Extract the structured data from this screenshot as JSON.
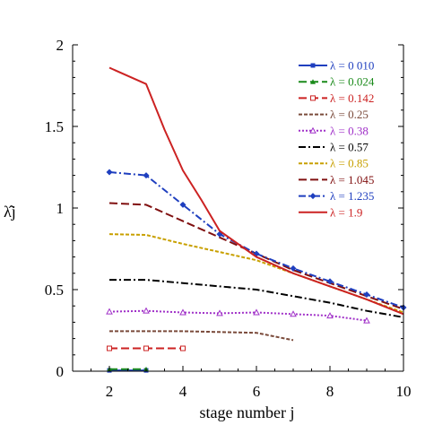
{
  "chart_data": {
    "type": "line",
    "title": "",
    "xlabel": "stage number j",
    "ylabel": "λ̂j",
    "xlim": [
      1,
      10
    ],
    "ylim": [
      0,
      2
    ],
    "xticks": [
      2,
      4,
      6,
      8,
      10
    ],
    "xtick_labels": [
      "2",
      "4",
      "6",
      "8",
      "10"
    ],
    "yticks": [
      0,
      0.5,
      1,
      1.5,
      2
    ],
    "ytick_labels": [
      "0",
      "0.5",
      "1",
      "1.5",
      "2"
    ],
    "grid": false,
    "legend_position": "top-right",
    "series": [
      {
        "name": "λ = 0 010",
        "color": "#1f3fbf",
        "dash": "solid",
        "marker": "square-filled",
        "x": [
          2,
          3
        ],
        "y": [
          0.005,
          0.005
        ]
      },
      {
        "name": "λ = 0.024",
        "color": "#1a8a1a",
        "dash": "long",
        "marker": "triangle",
        "x": [
          2,
          3
        ],
        "y": [
          0.012,
          0.012
        ]
      },
      {
        "name": "λ = 0.142",
        "color": "#cc2222",
        "dash": "long",
        "marker": "square-open",
        "x": [
          2,
          3,
          4
        ],
        "y": [
          0.14,
          0.14,
          0.14
        ]
      },
      {
        "name": "λ = 0.25",
        "color": "#7a4a3a",
        "dash": "short",
        "marker": "none",
        "x": [
          2,
          3,
          4,
          5,
          6,
          7
        ],
        "y": [
          0.245,
          0.245,
          0.245,
          0.24,
          0.235,
          0.19
        ]
      },
      {
        "name": "λ = 0.38",
        "color": "#a030c8",
        "dash": "dotted",
        "marker": "triangle-open",
        "x": [
          2,
          3,
          4,
          5,
          6,
          7,
          8,
          9
        ],
        "y": [
          0.365,
          0.37,
          0.36,
          0.355,
          0.36,
          0.35,
          0.34,
          0.31
        ]
      },
      {
        "name": "λ = 0.57",
        "color": "#000000",
        "dash": "dashdot",
        "marker": "none",
        "x": [
          2,
          3,
          4,
          5,
          6,
          7,
          8,
          9,
          10
        ],
        "y": [
          0.56,
          0.56,
          0.54,
          0.52,
          0.5,
          0.46,
          0.42,
          0.37,
          0.33
        ]
      },
      {
        "name": "λ = 0.85",
        "color": "#c8a000",
        "dash": "short",
        "marker": "none",
        "x": [
          2,
          3,
          4,
          5,
          6,
          7,
          8,
          9,
          10
        ],
        "y": [
          0.84,
          0.835,
          0.78,
          0.73,
          0.68,
          0.6,
          0.52,
          0.44,
          0.36
        ]
      },
      {
        "name": "λ = 1.045",
        "color": "#801010",
        "dash": "long",
        "marker": "none",
        "x": [
          2,
          3,
          4,
          5,
          6,
          7,
          8,
          9,
          10
        ],
        "y": [
          1.03,
          1.02,
          0.92,
          0.82,
          0.72,
          0.62,
          0.54,
          0.46,
          0.38
        ]
      },
      {
        "name": "λ = 1.235",
        "color": "#1f3fbf",
        "dash": "dashdot",
        "marker": "diamond-filled",
        "x": [
          2,
          3,
          4,
          5,
          6,
          7,
          8,
          9,
          10
        ],
        "y": [
          1.22,
          1.2,
          1.02,
          0.84,
          0.72,
          0.63,
          0.55,
          0.47,
          0.39
        ]
      },
      {
        "name": "λ = 1.9",
        "color": "#cc2222",
        "dash": "solid",
        "marker": "none",
        "x": [
          2,
          3,
          3.5,
          4,
          4.5,
          5,
          6,
          7,
          8,
          9,
          10
        ],
        "y": [
          1.86,
          1.76,
          1.48,
          1.23,
          1.05,
          0.86,
          0.7,
          0.6,
          0.52,
          0.44,
          0.35
        ]
      }
    ]
  }
}
